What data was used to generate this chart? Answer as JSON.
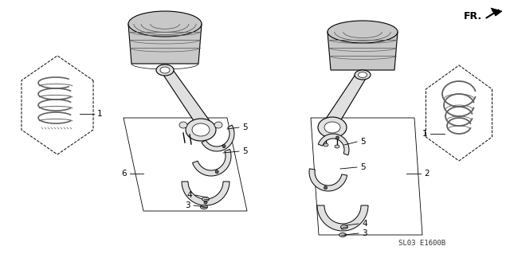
{
  "background_color": "#ffffff",
  "line_color": "#000000",
  "gray_fill": "#c8c8c8",
  "dark_gray": "#606060",
  "light_gray": "#e0e0e0",
  "watermark": "SL03 E1600B",
  "fr_label": "FR.",
  "figsize": [
    6.4,
    3.19
  ],
  "dpi": 100,
  "label_fontsize": 7.5,
  "watermark_fontsize": 6.5
}
